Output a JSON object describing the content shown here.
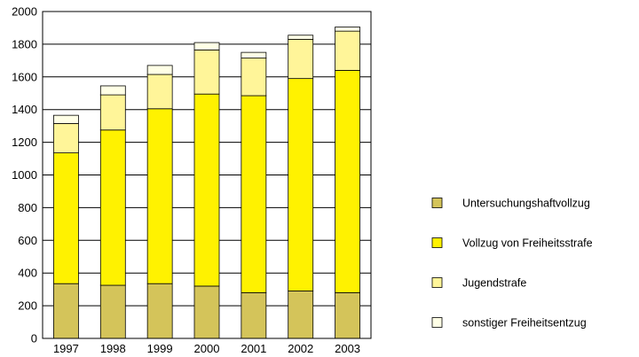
{
  "chart_data": {
    "type": "bar",
    "stacked": true,
    "categories": [
      "1997",
      "1998",
      "1999",
      "2000",
      "2001",
      "2002",
      "2003"
    ],
    "ylim": [
      0,
      2000
    ],
    "yticks": [
      0,
      200,
      400,
      600,
      800,
      1000,
      1200,
      1400,
      1600,
      1800,
      2000
    ],
    "grid": true,
    "legend_position": "right",
    "title": "",
    "xlabel": "",
    "ylabel": "",
    "series": [
      {
        "name": "Untersuchungshaftvollzug",
        "color": "#d4c45a",
        "values": [
          335,
          325,
          335,
          320,
          280,
          290,
          280
        ]
      },
      {
        "name": "Vollzug von Freiheitsstrafe",
        "color": "#fff200",
        "values": [
          800,
          950,
          1070,
          1175,
          1205,
          1300,
          1360
        ]
      },
      {
        "name": "Jugendstrafe",
        "color": "#fff599",
        "values": [
          180,
          215,
          210,
          270,
          230,
          240,
          240
        ]
      },
      {
        "name": "sonstiger Freiheitsentzug",
        "color": "#ffffe6",
        "values": [
          50,
          55,
          55,
          45,
          35,
          25,
          25
        ]
      }
    ]
  }
}
